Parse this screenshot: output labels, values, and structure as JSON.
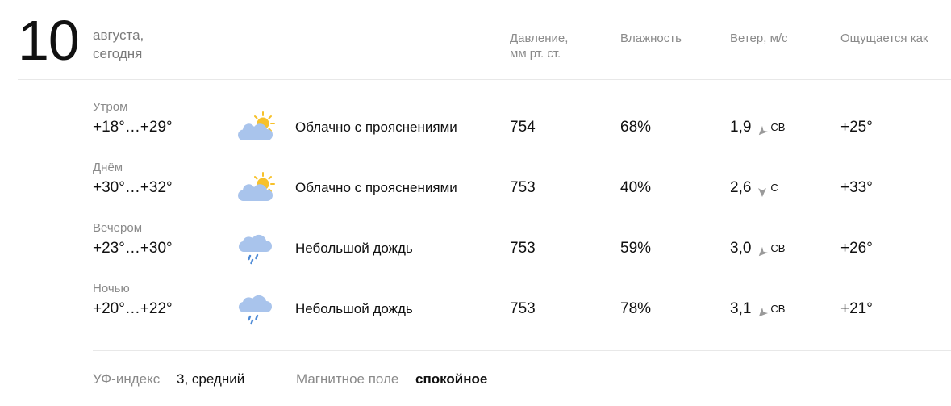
{
  "header": {
    "day": "10",
    "month": "августа,",
    "relative": "сегодня"
  },
  "columns": {
    "pressure_line1": "Давление,",
    "pressure_line2": "мм рт. ст.",
    "humidity": "Влажность",
    "wind": "Ветер, м/с",
    "feels": "Ощущается как"
  },
  "rows": [
    {
      "period": "Утром",
      "temp": "+18°…+29°",
      "icon": "partly-cloudy-icon",
      "condition": "Облачно с прояснениями",
      "pressure": "754",
      "humidity": "68%",
      "wind_speed": "1,9",
      "wind_dir": "СВ",
      "feels": "+25°"
    },
    {
      "period": "Днём",
      "temp": "+30°…+32°",
      "icon": "partly-cloudy-icon",
      "condition": "Облачно с прояснениями",
      "pressure": "753",
      "humidity": "40%",
      "wind_speed": "2,6",
      "wind_dir": "С",
      "feels": "+33°"
    },
    {
      "period": "Вечером",
      "temp": "+23°…+30°",
      "icon": "light-rain-icon",
      "condition": "Небольшой дождь",
      "pressure": "753",
      "humidity": "59%",
      "wind_speed": "3,0",
      "wind_dir": "СВ",
      "feels": "+26°"
    },
    {
      "period": "Ночью",
      "temp": "+20°…+22°",
      "icon": "light-rain-icon",
      "condition": "Небольшой дождь",
      "pressure": "753",
      "humidity": "78%",
      "wind_speed": "3,1",
      "wind_dir": "СВ",
      "feels": "+21°"
    }
  ],
  "footer": {
    "uv_label": "УФ-индекс",
    "uv_value": "3, средний",
    "magnetic_label": "Магнитное поле",
    "magnetic_value": "спокойное"
  },
  "colors": {
    "sun": "#f7c12b",
    "cloud": "#a9c4ec",
    "rain": "#4d8ad6",
    "arrow": "#9a9a9a"
  }
}
